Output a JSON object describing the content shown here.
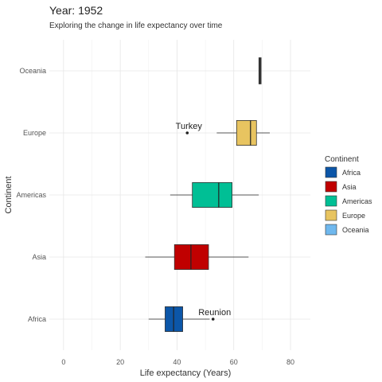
{
  "chart_data": {
    "type": "boxplot",
    "orientation": "horizontal",
    "title": "Year: 1952",
    "subtitle": "Exploring the change in life expectancy over time",
    "xlabel": "Life expectancy (Years)",
    "ylabel": "Continent",
    "xlim": [
      -5,
      87
    ],
    "xticks": [
      0,
      20,
      40,
      60,
      80
    ],
    "xtick_labels": [
      "0",
      "20",
      "40",
      "60",
      "80"
    ],
    "grid": true,
    "legend_position": "right",
    "legend_title": "Continent",
    "categories": [
      "Africa",
      "Asia",
      "Americas",
      "Europe",
      "Oceania"
    ],
    "legend": [
      {
        "name": "Africa",
        "color": "#0C56A8"
      },
      {
        "name": "Asia",
        "color": "#C00000"
      },
      {
        "name": "Americas",
        "color": "#00BF95"
      },
      {
        "name": "Europe",
        "color": "#E8C460"
      },
      {
        "name": "Oceania",
        "color": "#6FB8EE"
      }
    ],
    "boxes": [
      {
        "category": "Africa",
        "whisker_low": 30.0,
        "q1": 35.8,
        "median": 38.8,
        "q3": 42.0,
        "whisker_high": 51.5,
        "color": "#0C56A8",
        "outliers": [
          52.7
        ]
      },
      {
        "category": "Asia",
        "whisker_low": 28.8,
        "q1": 39.1,
        "median": 44.9,
        "q3": 51.1,
        "whisker_high": 65.2,
        "color": "#C00000",
        "outliers": []
      },
      {
        "category": "Americas",
        "whisker_low": 37.6,
        "q1": 45.4,
        "median": 54.7,
        "q3": 59.4,
        "whisker_high": 68.8,
        "color": "#00BF95",
        "outliers": []
      },
      {
        "category": "Europe",
        "whisker_low": 54.0,
        "q1": 61.0,
        "median": 65.9,
        "q3": 68.0,
        "whisker_high": 72.7,
        "color": "#E8C460",
        "outliers": [
          43.6
        ]
      },
      {
        "category": "Oceania",
        "whisker_low": 69.1,
        "q1": 69.1,
        "median": 69.25,
        "q3": 69.4,
        "whisker_high": 69.4,
        "color": "#6FB8EE",
        "outliers": []
      }
    ],
    "annotations": [
      {
        "category": "Africa",
        "x": 52.7,
        "label": "Reunion"
      },
      {
        "category": "Europe",
        "x": 43.6,
        "label": "Turkey"
      }
    ]
  }
}
